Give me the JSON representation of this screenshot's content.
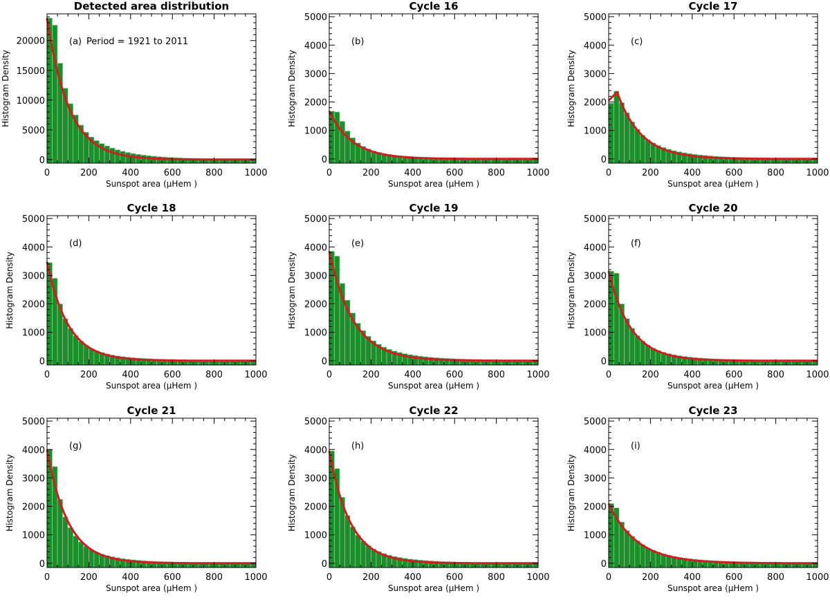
{
  "figure": {
    "layout": "3x3 grid of histograms"
  },
  "chart_data": [
    {
      "type": "bar",
      "title": "Detected area distribution",
      "panel_label": "(a)",
      "annotation": "Period = 1921 to 2011",
      "xlabel": "Sunspot area (μHem )",
      "ylabel": "Histogram Density",
      "xlim": [
        0,
        1000
      ],
      "ylim": [
        -600,
        24500
      ],
      "xticks": [
        0,
        200,
        400,
        600,
        800,
        1000
      ],
      "yticks": [
        0,
        5000,
        10000,
        15000,
        20000
      ],
      "bin_width": 25,
      "values": [
        23800,
        22600,
        16200,
        12000,
        9400,
        7500,
        5800,
        4600,
        3800,
        3200,
        2700,
        2300,
        1950,
        1650,
        1400,
        1200,
        1020,
        880,
        760,
        660,
        570,
        495,
        430,
        375,
        330,
        290,
        255,
        225,
        200,
        180,
        160,
        142,
        127,
        113,
        101,
        90,
        81,
        73,
        66,
        60
      ],
      "fit": {
        "model": "decaying exponential",
        "y0": 23800,
        "scale": 105
      }
    },
    {
      "type": "bar",
      "title": "Cycle 16",
      "panel_label": "(b)",
      "xlabel": "Sunspot area (μHem )",
      "ylabel": "Histogram Density",
      "xlim": [
        0,
        1000
      ],
      "ylim": [
        -150,
        5100
      ],
      "xticks": [
        0,
        200,
        400,
        600,
        800,
        1000
      ],
      "yticks": [
        0,
        1000,
        2000,
        3000,
        4000,
        5000
      ],
      "bin_width": 25,
      "values": [
        1680,
        1650,
        1320,
        980,
        740,
        560,
        440,
        350,
        280,
        230,
        190,
        160,
        130,
        110,
        95,
        80,
        68,
        58,
        50,
        43,
        37,
        32,
        28,
        24,
        21,
        19,
        17,
        15,
        13,
        12,
        11,
        10,
        9,
        8,
        7,
        6,
        6,
        5,
        5,
        4
      ],
      "fit": {
        "model": "decaying exponential",
        "y0": 1680,
        "scale": 110
      }
    },
    {
      "type": "bar",
      "title": "Cycle 17",
      "panel_label": "(c)",
      "xlabel": "Sunspot area (μHem )",
      "ylabel": "Histogram Density",
      "xlim": [
        0,
        1000
      ],
      "ylim": [
        -150,
        5100
      ],
      "xticks": [
        0,
        200,
        400,
        600,
        800,
        1000
      ],
      "yticks": [
        0,
        1000,
        2000,
        3000,
        4000,
        5000
      ],
      "bin_width": 25,
      "values": [
        1960,
        2380,
        1980,
        1620,
        1300,
        1040,
        830,
        670,
        560,
        470,
        400,
        340,
        290,
        250,
        215,
        185,
        160,
        140,
        122,
        106,
        92,
        80,
        70,
        62,
        55,
        49,
        44,
        39,
        35,
        31,
        28,
        25,
        23,
        21,
        19,
        17,
        16,
        15,
        14,
        13
      ],
      "fit": {
        "model": "rise then exponential decay",
        "start": 2050,
        "peak_x": 40,
        "peak": 2350,
        "scale": 115
      }
    },
    {
      "type": "bar",
      "title": "Cycle 18",
      "panel_label": "(d)",
      "xlabel": "Sunspot area (μHem )",
      "ylabel": "Histogram Density",
      "xlim": [
        0,
        1000
      ],
      "ylim": [
        -150,
        5100
      ],
      "xticks": [
        0,
        200,
        400,
        600,
        800,
        1000
      ],
      "yticks": [
        0,
        1000,
        2000,
        3000,
        4000,
        5000
      ],
      "bin_width": 25,
      "values": [
        3450,
        2900,
        2000,
        1480,
        1140,
        880,
        690,
        540,
        430,
        350,
        290,
        240,
        200,
        170,
        145,
        125,
        108,
        94,
        82,
        72,
        64,
        57,
        51,
        46,
        42,
        38,
        35,
        32,
        30,
        28,
        26,
        24,
        22,
        20,
        18,
        16,
        15,
        14,
        13,
        12
      ],
      "fit": {
        "model": "decaying exponential",
        "y0": 3480,
        "scale": 100
      }
    },
    {
      "type": "bar",
      "title": "Cycle 19",
      "panel_label": "(e)",
      "xlabel": "Sunspot area (μHem )",
      "ylabel": "Histogram Density",
      "xlim": [
        0,
        1000
      ],
      "ylim": [
        -150,
        5100
      ],
      "xticks": [
        0,
        200,
        400,
        600,
        800,
        1000
      ],
      "yticks": [
        0,
        1000,
        2000,
        3000,
        4000,
        5000
      ],
      "bin_width": 25,
      "values": [
        3850,
        3680,
        2720,
        2130,
        1680,
        1320,
        1060,
        860,
        700,
        580,
        480,
        400,
        340,
        290,
        250,
        215,
        185,
        160,
        140,
        122,
        107,
        94,
        83,
        74,
        66,
        59,
        53,
        48,
        43,
        39,
        35,
        32,
        29,
        27,
        25,
        23,
        21,
        19,
        18,
        17
      ],
      "fit": {
        "model": "decaying exponential",
        "y0": 3850,
        "scale": 115
      }
    },
    {
      "type": "bar",
      "title": "Cycle 20",
      "panel_label": "(f)",
      "xlabel": "Sunspot area (μHem )",
      "ylabel": "Histogram Density",
      "xlim": [
        0,
        1000
      ],
      "ylim": [
        -150,
        5100
      ],
      "xticks": [
        0,
        200,
        400,
        600,
        800,
        1000
      ],
      "yticks": [
        0,
        1000,
        2000,
        3000,
        4000,
        5000
      ],
      "bin_width": 25,
      "values": [
        3150,
        3080,
        2000,
        1480,
        1140,
        880,
        690,
        550,
        440,
        360,
        300,
        250,
        210,
        178,
        152,
        130,
        112,
        97,
        84,
        73,
        64,
        56,
        49,
        43,
        38,
        34,
        30,
        27,
        24,
        22,
        20,
        18,
        16,
        15,
        14,
        13,
        12,
        11,
        10,
        9
      ],
      "fit": {
        "model": "decaying exponential",
        "y0": 3150,
        "scale": 105
      }
    },
    {
      "type": "bar",
      "title": "Cycle 21",
      "panel_label": "(g)",
      "xlabel": "Sunspot area (μHem )",
      "ylabel": "Histogram Density",
      "xlim": [
        0,
        1000
      ],
      "ylim": [
        -150,
        5100
      ],
      "xticks": [
        0,
        200,
        400,
        600,
        800,
        1000
      ],
      "yticks": [
        0,
        1000,
        2000,
        3000,
        4000,
        5000
      ],
      "bin_width": 25,
      "values": [
        4000,
        3400,
        2250,
        1630,
        1250,
        960,
        750,
        600,
        480,
        390,
        320,
        270,
        230,
        195,
        166,
        142,
        122,
        105,
        91,
        79,
        69,
        60,
        53,
        47,
        42,
        37,
        33,
        30,
        27,
        24,
        22,
        20,
        18,
        16,
        15,
        14,
        13,
        12,
        11,
        10
      ],
      "fit": {
        "model": "decaying exponential",
        "y0": 4000,
        "scale": 100
      }
    },
    {
      "type": "bar",
      "title": "Cycle 22",
      "panel_label": "(h)",
      "xlabel": "Sunspot area (μHem )",
      "ylabel": "Histogram Density",
      "xlim": [
        0,
        1000
      ],
      "ylim": [
        -150,
        5100
      ],
      "xticks": [
        0,
        200,
        400,
        600,
        800,
        1000
      ],
      "yticks": [
        0,
        1000,
        2000,
        3000,
        4000,
        5000
      ],
      "bin_width": 25,
      "values": [
        3950,
        3330,
        2320,
        1680,
        1280,
        990,
        780,
        620,
        500,
        410,
        340,
        285,
        240,
        205,
        175,
        150,
        129,
        111,
        96,
        83,
        72,
        63,
        55,
        48,
        43,
        38,
        34,
        31,
        28,
        25,
        23,
        21,
        19,
        17,
        16,
        15,
        14,
        13,
        12,
        11
      ],
      "fit": {
        "model": "decaying exponential",
        "y0": 3950,
        "scale": 100
      }
    },
    {
      "type": "bar",
      "title": "Cycle 23",
      "panel_label": "(i)",
      "xlabel": "Sunspot area (μHem )",
      "ylabel": "Histogram Density",
      "xlim": [
        0,
        1000
      ],
      "ylim": [
        -150,
        5100
      ],
      "xticks": [
        0,
        200,
        400,
        600,
        800,
        1000
      ],
      "yticks": [
        0,
        1000,
        2000,
        3000,
        4000,
        5000
      ],
      "bin_width": 25,
      "values": [
        2100,
        1950,
        1450,
        1150,
        950,
        790,
        650,
        540,
        460,
        390,
        330,
        285,
        245,
        212,
        185,
        162,
        142,
        125,
        110,
        97,
        86,
        77,
        69,
        62,
        56,
        51,
        46,
        42,
        38,
        35,
        32,
        29,
        27,
        25,
        23,
        21,
        19,
        18,
        17,
        16
      ],
      "fit": {
        "model": "decaying exponential",
        "y0": 2100,
        "scale": 135
      }
    }
  ]
}
